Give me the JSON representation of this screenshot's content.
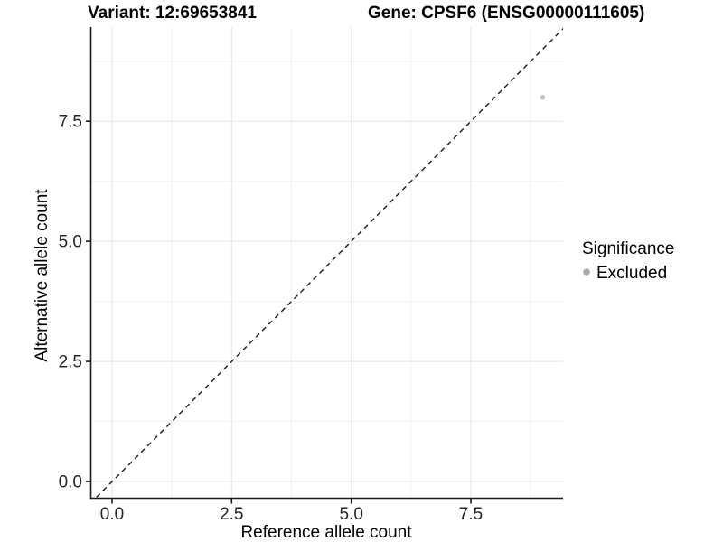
{
  "titles": {
    "variant": "Variant: 12:69653841",
    "gene": "Gene: CPSF6 (ENSG00000111605)"
  },
  "chart_data": {
    "type": "scatter",
    "title": "Variant: 12:69653841   Gene: CPSF6 (ENSG00000111605)",
    "xlabel": "Reference allele count",
    "ylabel": "Alternative allele count",
    "x_ticks": [
      "0.0",
      "2.5",
      "5.0",
      "7.5"
    ],
    "y_ticks": [
      "0.0",
      "2.5",
      "5.0",
      "7.5"
    ],
    "x_tick_values": [
      0,
      2.5,
      5,
      7.5
    ],
    "y_tick_values": [
      0,
      2.5,
      5,
      7.5
    ],
    "xlim": [
      -0.45,
      9.45
    ],
    "ylim": [
      -0.45,
      9.45
    ],
    "grid": "major+minor",
    "reference_line": {
      "type": "identity y=x",
      "style": "dashed",
      "color": "#1a1a1a"
    },
    "series": [
      {
        "name": "Excluded",
        "points": [
          {
            "x": 9,
            "y": 8
          }
        ],
        "color": "#bdbdbd"
      }
    ],
    "legend": {
      "title": "Significance",
      "position": "right",
      "entries": [
        {
          "label": "Excluded",
          "color": "#a9a9a9"
        }
      ]
    }
  },
  "colors": {
    "background": "#ffffff",
    "axis_line": "#1a1a1a",
    "grid_major": "#e4e4e4",
    "grid_minor": "#f2f2f2",
    "point": "#c2c2c2"
  }
}
